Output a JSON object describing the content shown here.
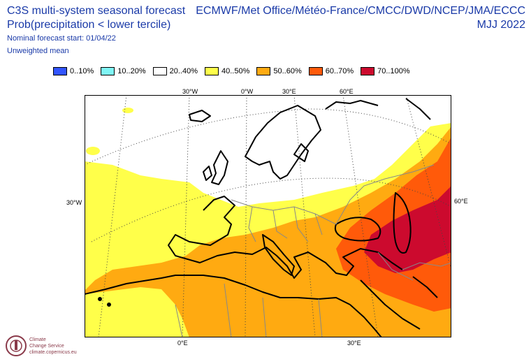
{
  "header": {
    "title_line1": "C3S multi-system seasonal forecast",
    "title_line2": "Prob(precipitation < lower tercile)",
    "start": "Nominal forecast start: 01/04/22",
    "mean": "Unweighted mean",
    "systems": "ECMWF/Met Office/Météo-France/CMCC/DWD/NCEP/JMA/ECCC",
    "season": "MJJ 2022"
  },
  "legend": [
    {
      "label": "0..10%",
      "color": "#3355ff"
    },
    {
      "label": "10..20%",
      "color": "#7ff5f5"
    },
    {
      "label": "20..40%",
      "color": "#ffffff"
    },
    {
      "label": "40..50%",
      "color": "#ffff4a"
    },
    {
      "label": "50..60%",
      "color": "#ffaa11"
    },
    {
      "label": "60..70%",
      "color": "#ff5a0a"
    },
    {
      "label": "70..100%",
      "color": "#cc0a2e"
    }
  ],
  "graticule_labels": {
    "top": [
      "30°W",
      "0°W",
      "30°E",
      "60°E"
    ],
    "left": "30°W",
    "right": "60°E",
    "bottom": [
      "0°E",
      "30°E"
    ]
  },
  "logo": {
    "line1": "Climate",
    "line2": "Change Service",
    "line3": "climate.copernicus.eu"
  }
}
